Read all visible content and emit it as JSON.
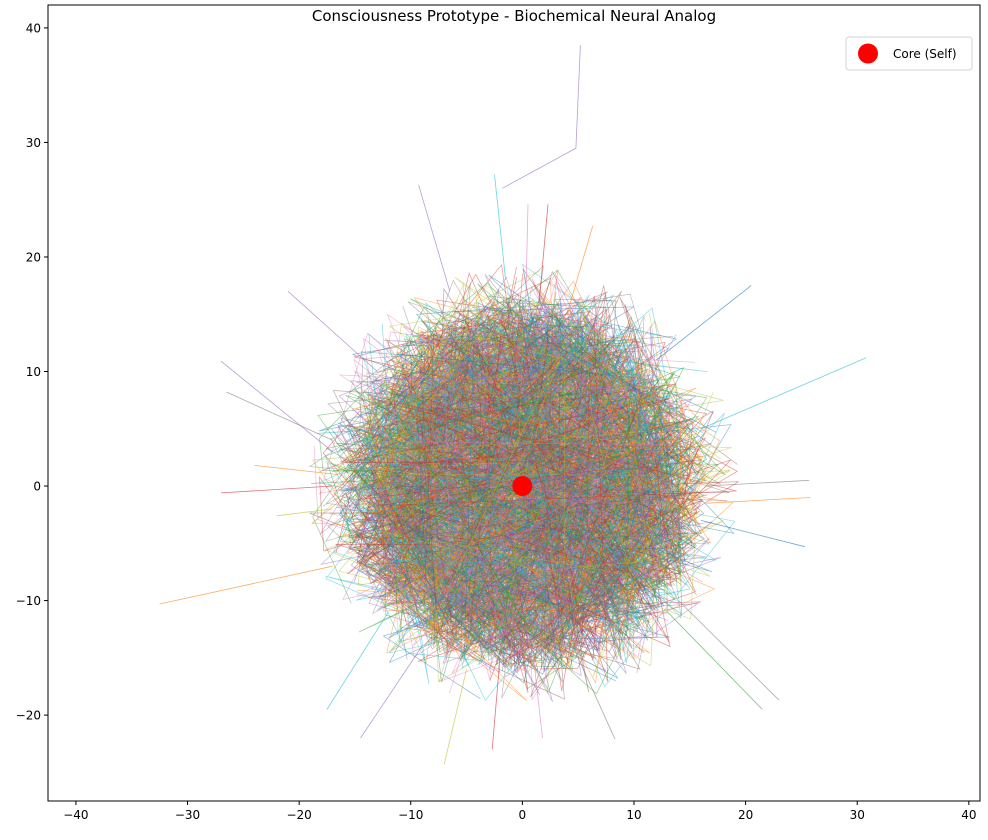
{
  "chart_data": {
    "type": "line",
    "title": "Consciousness Prototype - Biochemical Neural Analog",
    "xlabel": "",
    "ylabel": "",
    "xlim": [
      -42.5,
      41
    ],
    "ylim": [
      -27.5,
      42
    ],
    "x_ticks": [
      -40,
      -30,
      -20,
      -10,
      0,
      10,
      20,
      30,
      40
    ],
    "y_ticks": [
      -20,
      -10,
      0,
      10,
      20,
      30,
      40
    ],
    "grid": false,
    "legend_position": "top-right",
    "trajectories": {
      "count": 300,
      "ring_inner_radius": 11,
      "ring_outer_radius": 16.5,
      "line_alpha": 0.5,
      "palette": [
        "#1f77b4",
        "#ff7f0e",
        "#2ca02c",
        "#d62728",
        "#9467bd",
        "#8c564b",
        "#e377c2",
        "#7f7f7f",
        "#bcbd22",
        "#17becf"
      ]
    },
    "outlier_segments": [
      {
        "points": [
          [
            -1.8,
            26
          ],
          [
            4.8,
            29.5
          ],
          [
            5.2,
            38.5
          ]
        ],
        "color": "#9467bd"
      },
      {
        "points": [
          [
            -2.5,
            27.2
          ],
          [
            -1.5,
            18
          ]
        ],
        "color": "#17becf"
      },
      {
        "points": [
          [
            -9.3,
            26.3
          ],
          [
            -6.5,
            17
          ]
        ],
        "color": "#9467bd"
      },
      {
        "points": [
          [
            -32.5,
            -10.3
          ],
          [
            -17,
            -7
          ]
        ],
        "color": "#ff7f0e"
      },
      {
        "points": [
          [
            -27,
            10.9
          ],
          [
            -17,
            3
          ]
        ],
        "color": "#9467bd"
      },
      {
        "points": [
          [
            -26.5,
            8.2
          ],
          [
            -17,
            4
          ]
        ],
        "color": "#7f7f7f"
      },
      {
        "points": [
          [
            -27,
            -0.6
          ],
          [
            -17,
            0
          ]
        ],
        "color": "#d62728"
      },
      {
        "points": [
          [
            30.8,
            11.2
          ],
          [
            16,
            5
          ]
        ],
        "color": "#17becf"
      },
      {
        "points": [
          [
            25.7,
            0.5
          ],
          [
            16.5,
            0
          ]
        ],
        "color": "#7f7f7f"
      },
      {
        "points": [
          [
            25.8,
            -1
          ],
          [
            16.5,
            -1.5
          ]
        ],
        "color": "#ff7f0e"
      },
      {
        "points": [
          [
            25.3,
            -5.3
          ],
          [
            16,
            -3
          ]
        ],
        "color": "#1f77b4"
      },
      {
        "points": [
          [
            23,
            -18.7
          ],
          [
            14,
            -10
          ]
        ],
        "color": "#7f7f7f"
      },
      {
        "points": [
          [
            21.5,
            -19.5
          ],
          [
            13,
            -11
          ]
        ],
        "color": "#2ca02c"
      },
      {
        "points": [
          [
            20.5,
            17.5
          ],
          [
            12,
            11
          ]
        ],
        "color": "#1f77b4"
      },
      {
        "points": [
          [
            -17.5,
            -19.5
          ],
          [
            -12,
            -11
          ]
        ],
        "color": "#17becf"
      },
      {
        "points": [
          [
            -14.5,
            -22
          ],
          [
            -9,
            -14
          ]
        ],
        "color": "#9467bd"
      },
      {
        "points": [
          [
            -7,
            -24.3
          ],
          [
            -5,
            -16
          ]
        ],
        "color": "#bcbd22"
      },
      {
        "points": [
          [
            -2.7,
            -23
          ],
          [
            -2,
            -15
          ]
        ],
        "color": "#d62728"
      },
      {
        "points": [
          [
            1.8,
            -22
          ],
          [
            1,
            -15
          ]
        ],
        "color": "#e377c2"
      },
      {
        "points": [
          [
            8.3,
            -22.1
          ],
          [
            5,
            -15
          ]
        ],
        "color": "#7f7f7f"
      },
      {
        "points": [
          [
            2.3,
            24.6
          ],
          [
            1.5,
            16
          ]
        ],
        "color": "#d62728"
      },
      {
        "points": [
          [
            0.5,
            24.6
          ],
          [
            0.3,
            16
          ]
        ],
        "color": "#e377c2"
      },
      {
        "points": [
          [
            6.3,
            22.7
          ],
          [
            4,
            15
          ]
        ],
        "color": "#ff7f0e"
      },
      {
        "points": [
          [
            -24,
            1.8
          ],
          [
            -16.5,
            1
          ]
        ],
        "color": "#ff7f0e"
      },
      {
        "points": [
          [
            -21,
            17
          ],
          [
            -13,
            10
          ]
        ],
        "color": "#9467bd"
      },
      {
        "points": [
          [
            -22,
            -2.6
          ],
          [
            -17,
            -2
          ]
        ],
        "color": "#bcbd22"
      }
    ],
    "core": {
      "x": 0,
      "y": 0,
      "color": "#ff0000",
      "label": "Core (Self)"
    }
  }
}
